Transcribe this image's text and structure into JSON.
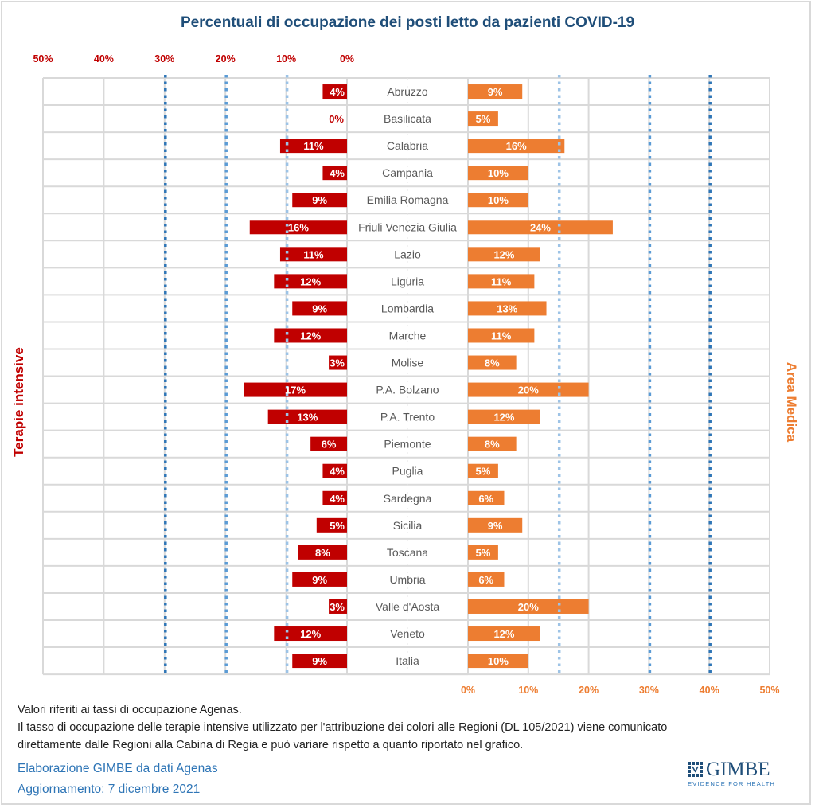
{
  "title": "Percentuali di occupazione dei posti letto da pazienti COVID-19",
  "left_axis_label": "Terapie intensive",
  "right_axis_label": "Area Medica",
  "notes": [
    "Valori riferiti ai tassi di occupazione Agenas.",
    "Il tasso di occupazione delle terapie intensive utilizzato per l'attribuzione dei colori alle Regioni (DL 105/2021) viene comunicato",
    "direttamente dalle Regioni alla Cabina di Regia e può variare rispetto a quanto riportato nel grafico."
  ],
  "credit": "Elaborazione GIMBE da dati Agenas",
  "updated": "Aggiornamento: 7 dicembre 2021",
  "logo": {
    "name": "GIMBE",
    "tagline": "EVIDENCE FOR HEALTH"
  },
  "colors": {
    "title": "#1f4e79",
    "ti_bar": "#c00000",
    "am_bar": "#ed7d31",
    "grid": "#d9d9d9",
    "threshold_dark": "#2e75b6",
    "threshold_mid": "#5b9bd5",
    "threshold_light": "#9dc3e6"
  },
  "chart_data": {
    "type": "bar",
    "orientation": "horizontal-butterfly",
    "title": "Percentuali di occupazione dei posti letto da pazienti COVID-19",
    "categories": [
      "Abruzzo",
      "Basilicata",
      "Calabria",
      "Campania",
      "Emilia Romagna",
      "Friuli Venezia Giulia",
      "Lazio",
      "Liguria",
      "Lombardia",
      "Marche",
      "Molise",
      "P.A. Bolzano",
      "P.A. Trento",
      "Piemonte",
      "Puglia",
      "Sardegna",
      "Sicilia",
      "Toscana",
      "Umbria",
      "Valle d'Aosta",
      "Veneto",
      "Italia"
    ],
    "series": [
      {
        "name": "Terapie intensive",
        "side": "left",
        "values": [
          4,
          0,
          11,
          4,
          9,
          16,
          11,
          12,
          9,
          12,
          3,
          17,
          13,
          6,
          4,
          4,
          5,
          8,
          9,
          3,
          12,
          9
        ],
        "labels": [
          "4%",
          "0%",
          "11%",
          "4%",
          "9%",
          "16%",
          "11%",
          "12%",
          "9%",
          "12%",
          "3%",
          "17%",
          "13%",
          "6%",
          "4%",
          "4%",
          "5%",
          "8%",
          "9%",
          "3%",
          "12%",
          "9%"
        ]
      },
      {
        "name": "Area Medica",
        "side": "right",
        "values": [
          9,
          5,
          16,
          10,
          10,
          24,
          12,
          11,
          13,
          11,
          8,
          20,
          12,
          8,
          5,
          6,
          9,
          5,
          6,
          20,
          12,
          10
        ],
        "labels": [
          "9%",
          "5%",
          "16%",
          "10%",
          "10%",
          "24%",
          "12%",
          "11%",
          "13%",
          "11%",
          "8%",
          "20%",
          "12%",
          "8%",
          "5%",
          "6%",
          "9%",
          "5%",
          "6%",
          "20%",
          "12%",
          "10%"
        ]
      }
    ],
    "left_axis": {
      "ticks": [
        "50%",
        "40%",
        "30%",
        "20%",
        "10%",
        "0%"
      ],
      "range": [
        0,
        50
      ],
      "reversed": true
    },
    "right_axis": {
      "ticks": [
        "0%",
        "10%",
        "20%",
        "30%",
        "40%",
        "50%"
      ],
      "range": [
        0,
        50
      ]
    },
    "threshold_lines": {
      "left": [
        {
          "value": 30,
          "style": "dark"
        },
        {
          "value": 20,
          "style": "mid"
        },
        {
          "value": 10,
          "style": "light"
        }
      ],
      "right": [
        {
          "value": 15,
          "style": "light"
        },
        {
          "value": 30,
          "style": "mid"
        },
        {
          "value": 40,
          "style": "dark"
        }
      ]
    },
    "grid": true
  }
}
